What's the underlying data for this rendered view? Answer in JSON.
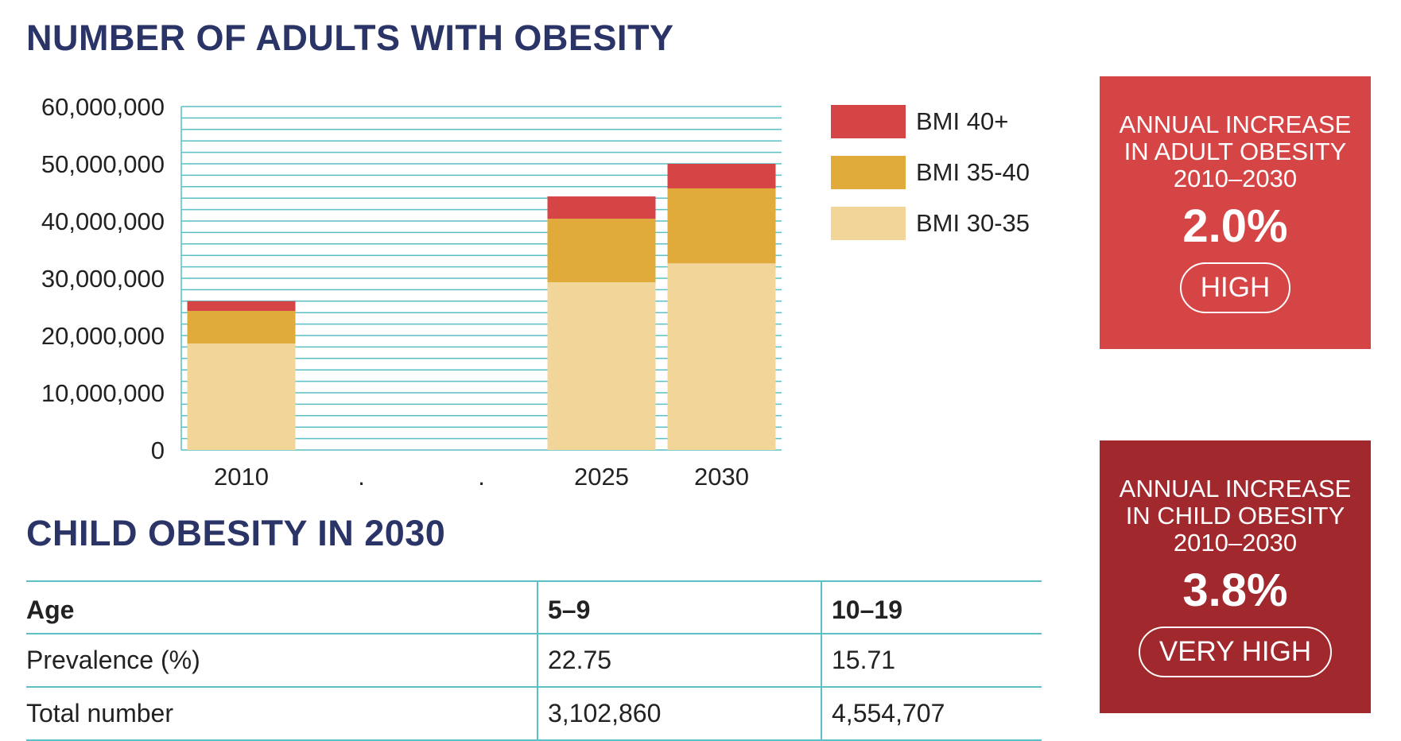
{
  "adult_section": {
    "title": "NUMBER OF ADULTS WITH OBESITY"
  },
  "child_section": {
    "title": "CHILD OBESITY IN 2030"
  },
  "chart_data": {
    "type": "bar",
    "stacked": true,
    "title": "NUMBER OF ADULTS WITH OBESITY",
    "categories": [
      "2010",
      ".",
      ".",
      "2025",
      "2030"
    ],
    "series": [
      {
        "name": "BMI 30-35",
        "values": [
          18600000,
          null,
          null,
          29300000,
          32600000
        ],
        "color": "#f1d599"
      },
      {
        "name": "BMI 35-40",
        "values": [
          5700000,
          null,
          null,
          11100000,
          13100000
        ],
        "color": "#e0ab3a"
      },
      {
        "name": "BMI 40+",
        "values": [
          1700000,
          null,
          null,
          3900000,
          4300000
        ],
        "color": "#d64546"
      }
    ],
    "y_ticks": [
      "0",
      "10,000,000",
      "20,000,000",
      "30,000,000",
      "40,000,000",
      "50,000,000",
      "60,000,000"
    ],
    "ylim": [
      0,
      60000000
    ],
    "grid": true,
    "grid_color": "#5bbfc6",
    "legend_position": "right"
  },
  "legend": [
    {
      "label": "BMI 40+",
      "color": "#d64546"
    },
    {
      "label": "BMI 35-40",
      "color": "#e0ab3a"
    },
    {
      "label": "BMI 30-35",
      "color": "#f1d599"
    }
  ],
  "adult_box": {
    "line1": "ANNUAL INCREASE",
    "line2": "IN ADULT OBESITY",
    "line3": "2010–2030",
    "value": "2.0%",
    "rating": "HIGH",
    "color": "#d64546"
  },
  "child_box": {
    "line1": "ANNUAL INCREASE",
    "line2": "IN CHILD OBESITY",
    "line3": "2010–2030",
    "value": "3.8%",
    "rating": "VERY HIGH",
    "color": "#a1282c"
  },
  "child_table": {
    "headers": [
      "Age",
      "5–9",
      "10–19"
    ],
    "rows": [
      [
        "Prevalence (%)",
        "22.75",
        "15.71"
      ],
      [
        "Total number",
        "3,102,860",
        "4,554,707"
      ]
    ]
  }
}
